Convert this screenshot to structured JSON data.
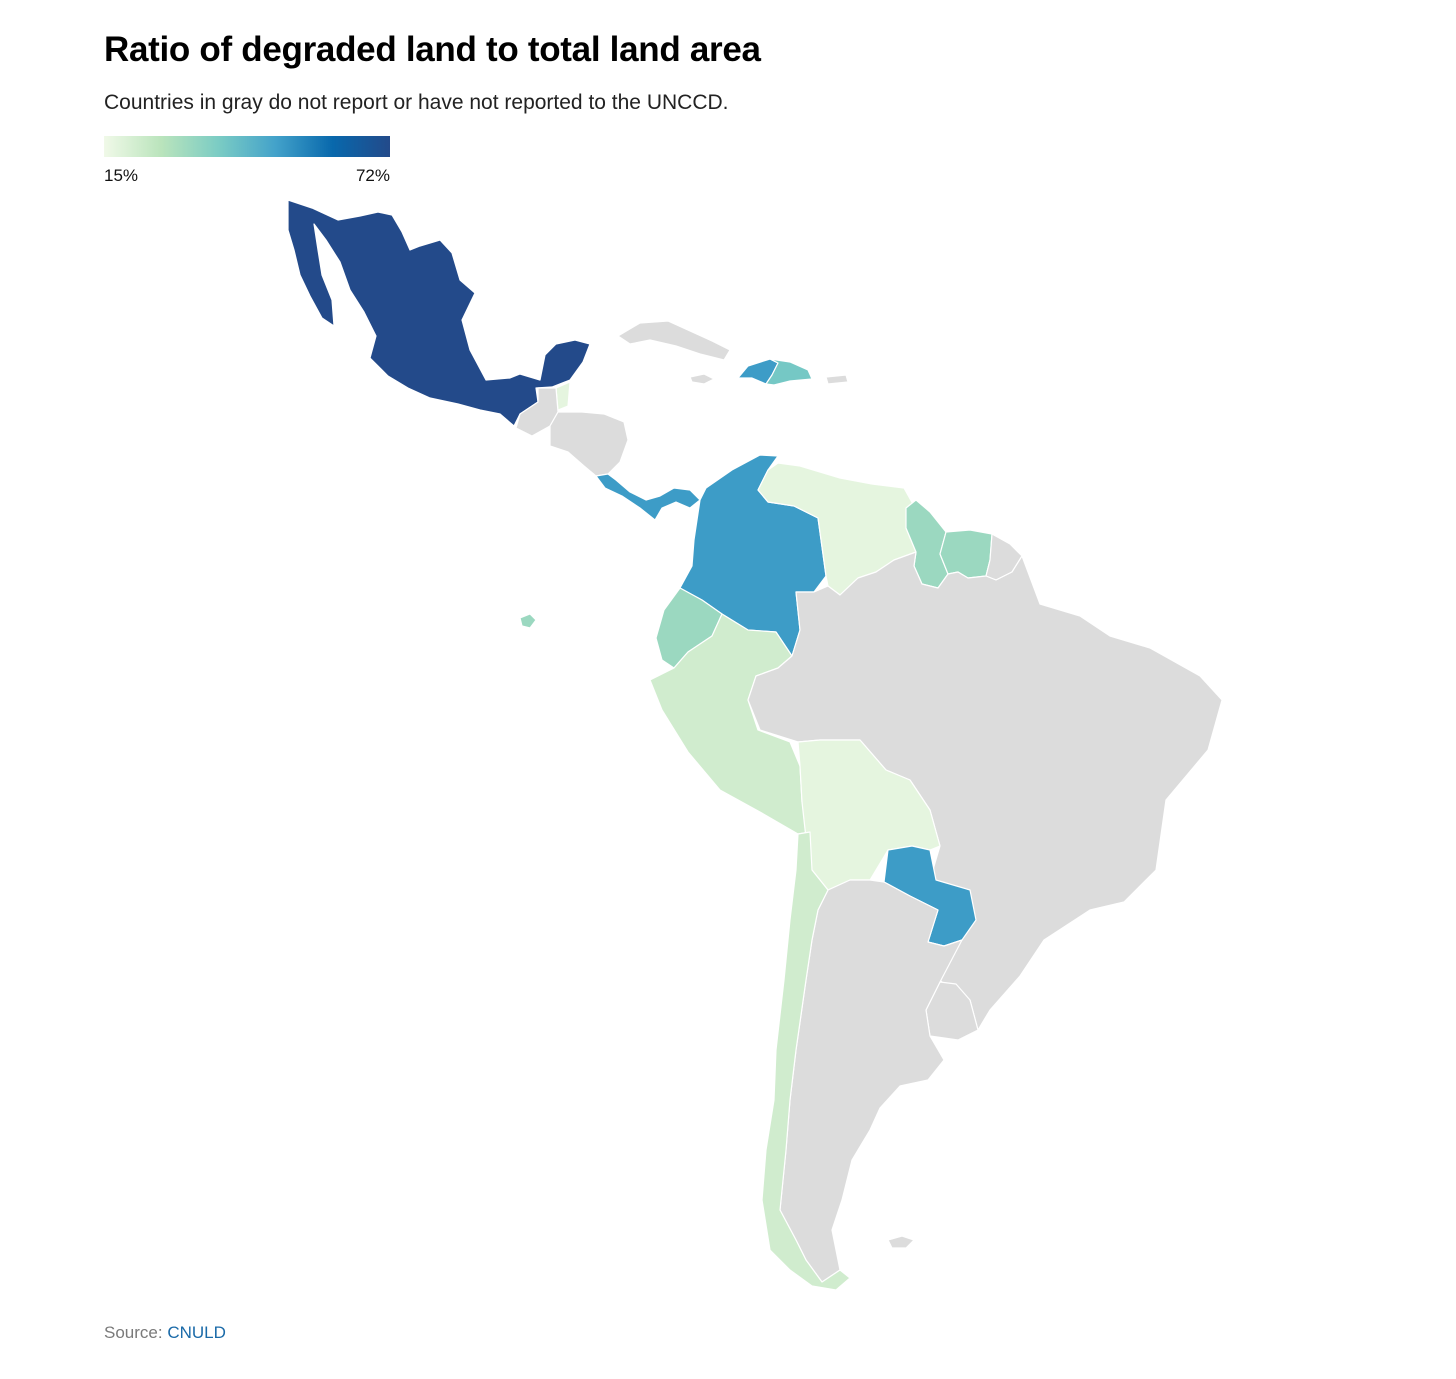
{
  "title": "Ratio of degraded land to total land area",
  "subtitle": "Countries in gray do not report or have not reported to the UNCCD.",
  "legend": {
    "min_label": "15%",
    "max_label": "72%",
    "min": 15,
    "max": 72,
    "ramp": [
      "#f0f9e8",
      "#bae4bc",
      "#7bccc4",
      "#43a2ca",
      "#0868ac",
      "#234a8a"
    ]
  },
  "no_data_color": "#dcdcdc",
  "source": {
    "prefix": "Source:",
    "link": "CNULD"
  },
  "regions": [
    {
      "id": "mexico",
      "level": 1.0
    },
    {
      "id": "colombia",
      "level": 0.62
    },
    {
      "id": "costa-rica-panama",
      "level": 0.62
    },
    {
      "id": "paraguay",
      "level": 0.62
    },
    {
      "id": "haiti",
      "level": 0.62
    },
    {
      "id": "dominican-republic",
      "level": 0.42
    },
    {
      "id": "ecuador",
      "level": 0.3
    },
    {
      "id": "galapagos",
      "level": 0.3
    },
    {
      "id": "guyana",
      "level": 0.3
    },
    {
      "id": "suriname",
      "level": 0.3
    },
    {
      "id": "peru",
      "level": 0.12
    },
    {
      "id": "chile",
      "level": 0.12
    },
    {
      "id": "venezuela",
      "level": 0.04
    },
    {
      "id": "bolivia",
      "level": 0.04
    },
    {
      "id": "belize",
      "level": 0.04
    },
    {
      "id": "guatemala",
      "level": null
    },
    {
      "id": "honduras-nicaragua-elsalvador",
      "level": null
    },
    {
      "id": "cuba",
      "level": null
    },
    {
      "id": "jamaica",
      "level": null
    },
    {
      "id": "puerto-rico",
      "level": null
    },
    {
      "id": "french-guiana",
      "level": null
    },
    {
      "id": "brazil",
      "level": null
    },
    {
      "id": "argentina",
      "level": null
    },
    {
      "id": "uruguay",
      "level": null
    },
    {
      "id": "falklands",
      "level": null
    }
  ]
}
